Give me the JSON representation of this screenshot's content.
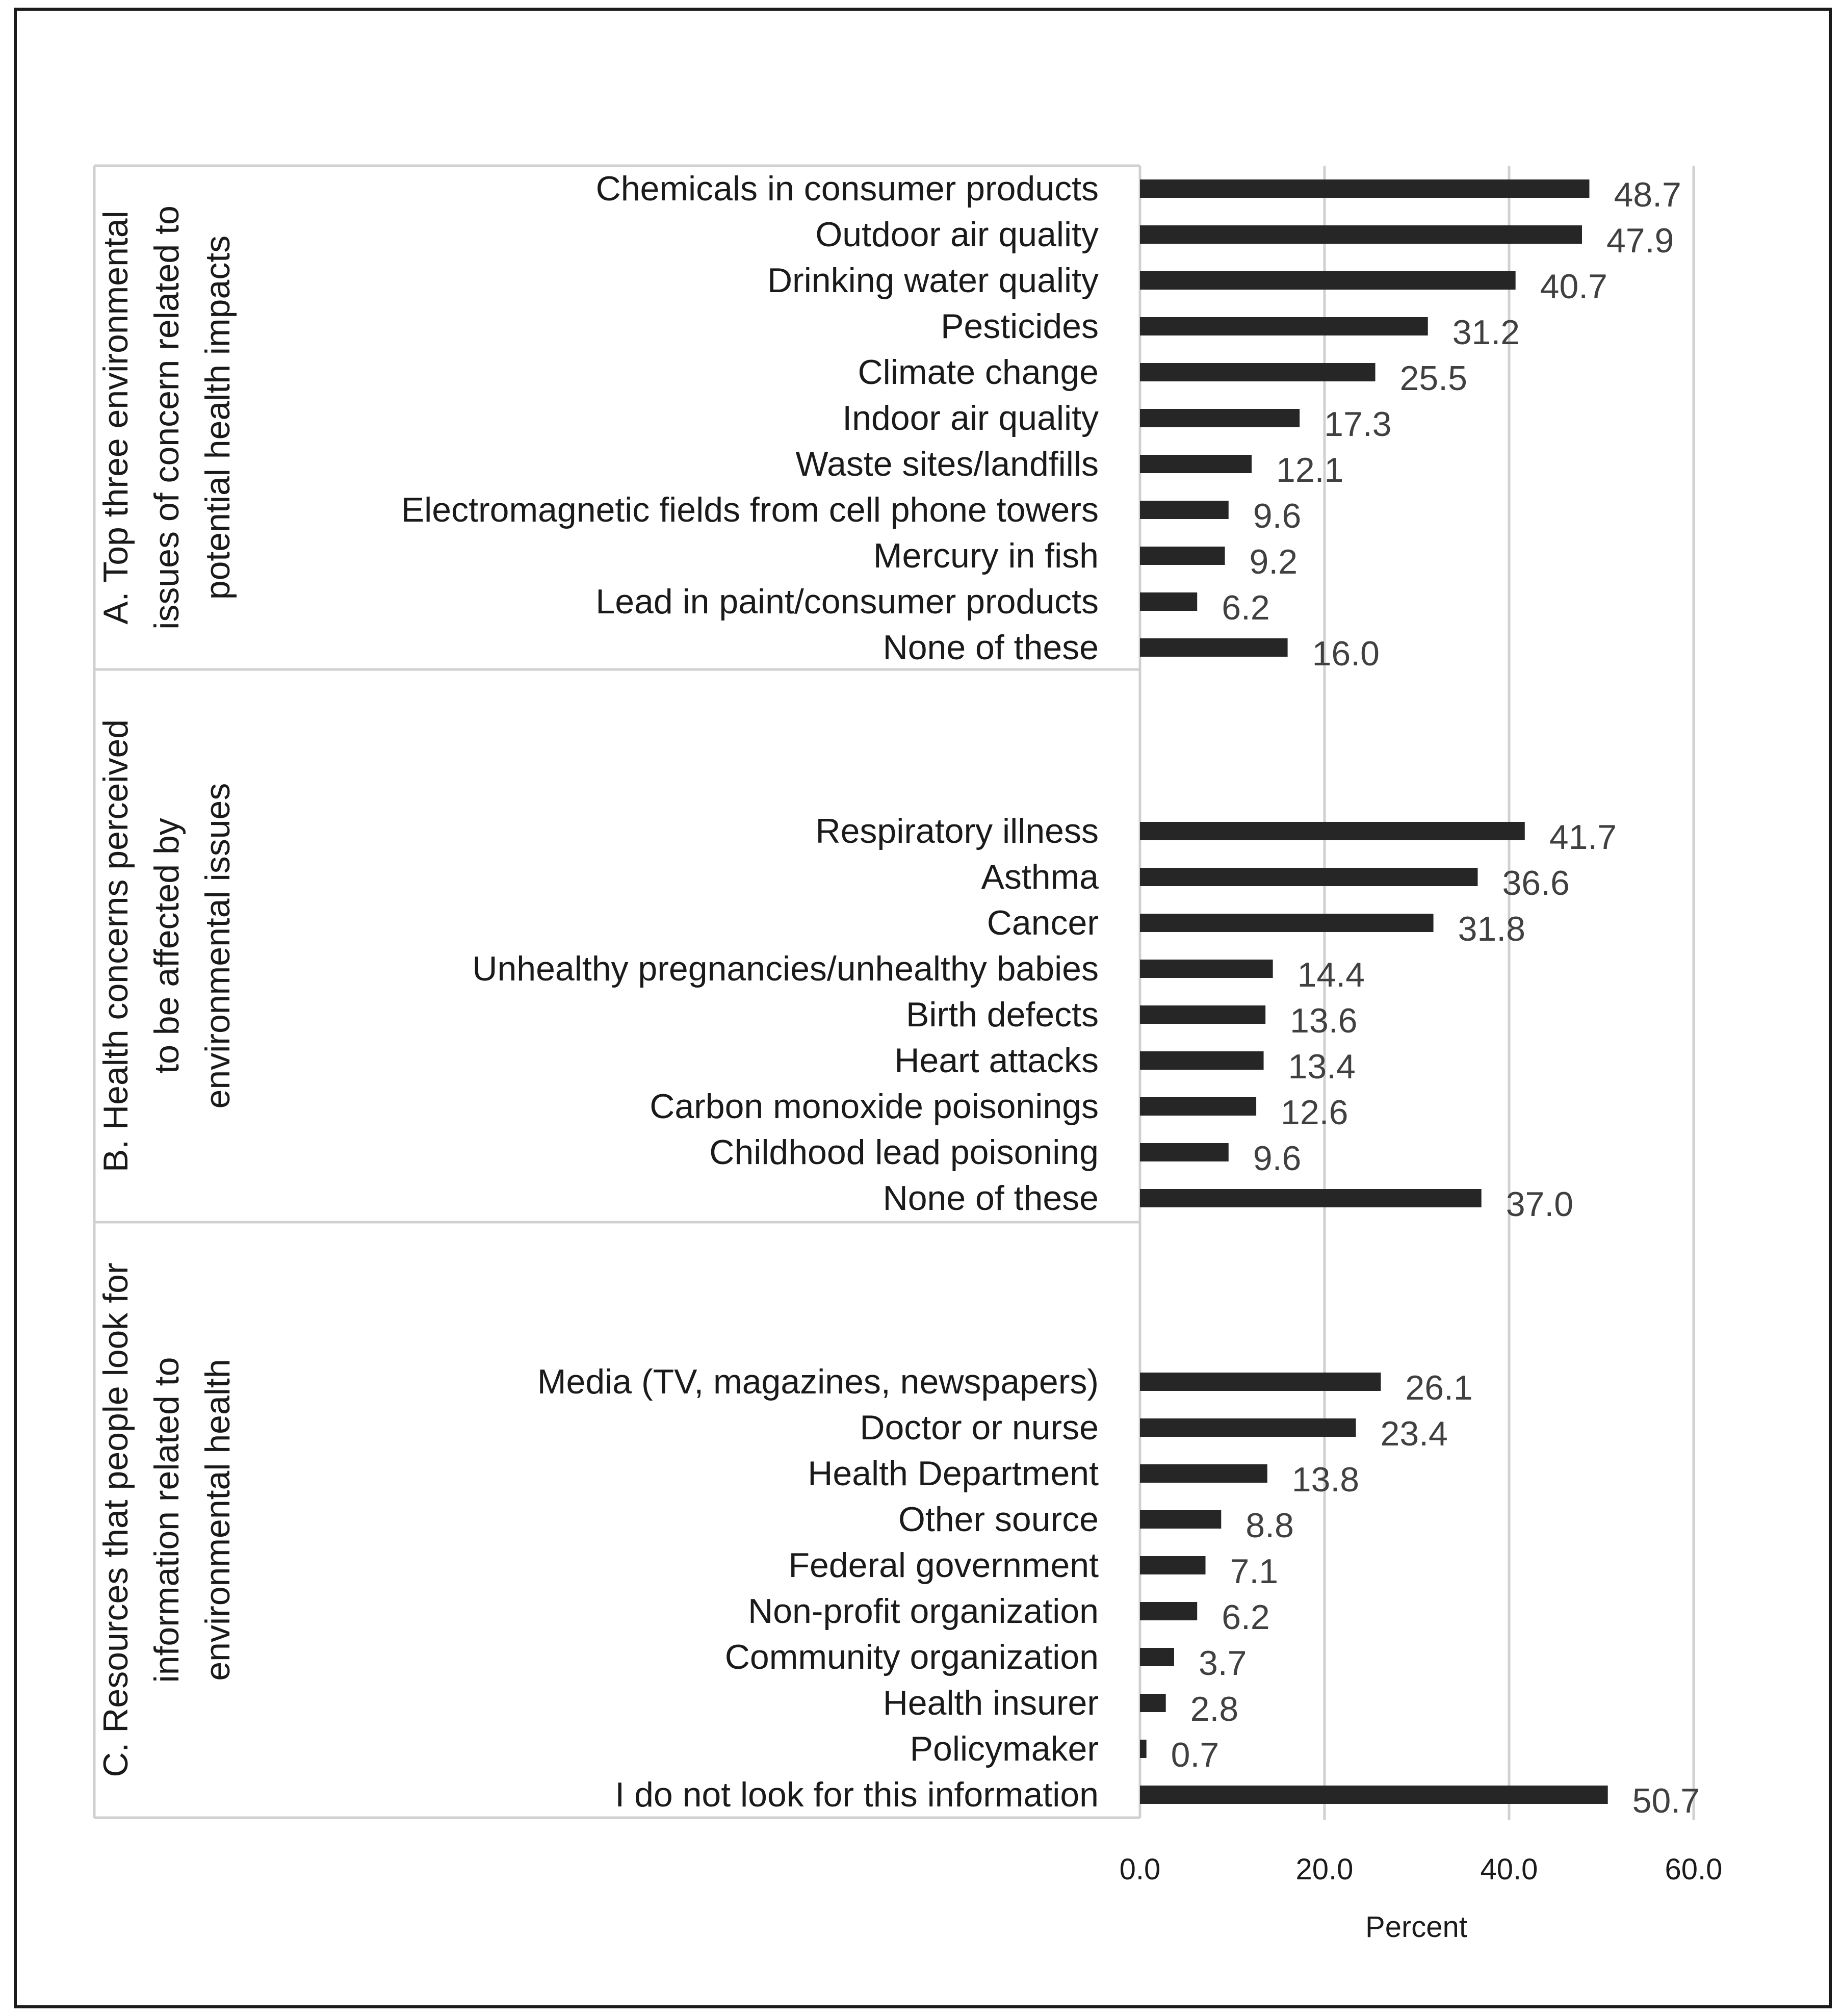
{
  "chart_data": {
    "type": "bar",
    "orientation": "horizontal",
    "xlabel": "Percent",
    "xlim": [
      0,
      60
    ],
    "xticks": [
      "0.0",
      "20.0",
      "40.0",
      "60.0"
    ],
    "grid": true,
    "bar_color": "#262626",
    "groups": [
      {
        "label_lines": [
          "A. Top three environmental",
          "issues of concern related to",
          "potential health impacts"
        ],
        "categories": [
          "Chemicals in consumer products",
          "Outdoor air quality",
          "Drinking water quality",
          "Pesticides",
          "Climate change",
          "Indoor air quality",
          "Waste sites/landfills",
          "Electromagnetic fields from cell phone towers",
          "Mercury in fish",
          "Lead in paint/consumer products",
          "None of these"
        ],
        "values": [
          48.7,
          47.9,
          40.7,
          31.2,
          25.5,
          17.3,
          12.1,
          9.6,
          9.2,
          6.2,
          16.0
        ],
        "value_labels": [
          "48.7",
          "47.9",
          "40.7",
          "31.2",
          "25.5",
          "17.3",
          "12.1",
          "9.6",
          "9.2",
          "6.2",
          "16.0"
        ]
      },
      {
        "label_lines": [
          "B. Health concerns perceived",
          "to be affected by",
          "environmental issues"
        ],
        "categories": [
          "Respiratory illness",
          "Asthma",
          "Cancer",
          "Unhealthy pregnancies/unhealthy babies",
          "Birth defects",
          "Heart attacks",
          "Carbon monoxide poisonings",
          "Childhood lead poisoning",
          "None of these"
        ],
        "values": [
          41.7,
          36.6,
          31.8,
          14.4,
          13.6,
          13.4,
          12.6,
          9.6,
          37.0
        ],
        "value_labels": [
          "41.7",
          "36.6",
          "31.8",
          "14.4",
          "13.6",
          "13.4",
          "12.6",
          "9.6",
          "37.0"
        ]
      },
      {
        "label_lines": [
          "C. Resources that people look for",
          "information related to",
          "environmental health"
        ],
        "categories": [
          "Media (TV, magazines, newspapers)",
          "Doctor or nurse",
          "Health Department",
          "Other source",
          "Federal government",
          "Non-profit organization",
          "Community organization",
          "Health insurer",
          "Policymaker",
          "I do not look for this information"
        ],
        "values": [
          26.1,
          23.4,
          13.8,
          8.8,
          7.1,
          6.2,
          3.7,
          2.8,
          0.7,
          50.7
        ],
        "value_labels": [
          "26.1",
          "23.4",
          "13.8",
          "8.8",
          "7.1",
          "6.2",
          "3.7",
          "2.8",
          "0.7",
          "50.7"
        ]
      }
    ]
  }
}
